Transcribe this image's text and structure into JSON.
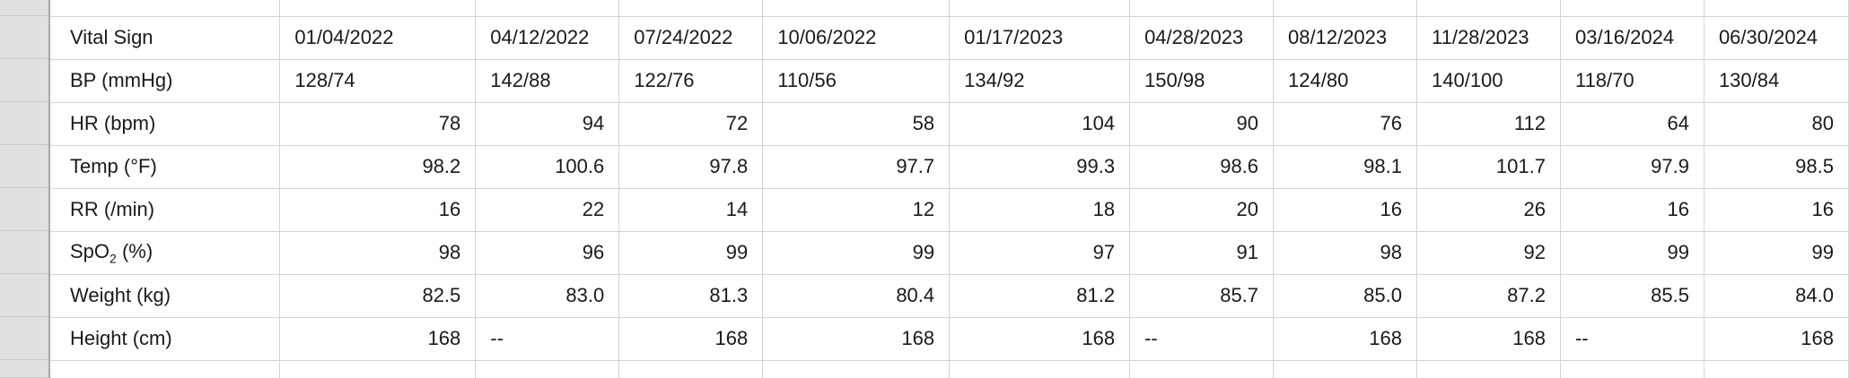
{
  "table": {
    "header": [
      "Vital Sign",
      "01/04/2022",
      "04/12/2022",
      "07/24/2022",
      "10/06/2022",
      "01/17/2023",
      "04/28/2023",
      "08/12/2023",
      "11/28/2023",
      "03/16/2024",
      "06/30/2024"
    ],
    "rows": [
      {
        "label": "BP (mmHg)",
        "align": "txt",
        "values": [
          "128/74",
          "142/88",
          "122/76",
          "110/56",
          "134/92",
          "150/98",
          "124/80",
          "140/100",
          "118/70",
          "130/84"
        ]
      },
      {
        "label": "HR (bpm)",
        "align": "num",
        "values": [
          "78",
          "94",
          "72",
          "58",
          "104",
          "90",
          "76",
          "112",
          "64",
          "80"
        ]
      },
      {
        "label": "Temp (°F)",
        "align": "num",
        "values": [
          "98.2",
          "100.6",
          "97.8",
          "97.7",
          "99.3",
          "98.6",
          "98.1",
          "101.7",
          "97.9",
          "98.5"
        ]
      },
      {
        "label": "RR (/min)",
        "align": "num",
        "values": [
          "16",
          "22",
          "14",
          "12",
          "18",
          "20",
          "16",
          "26",
          "16",
          "16"
        ]
      },
      {
        "label_main": "SpO",
        "label_sub": "2",
        "label_tail": " (%)",
        "align": "num",
        "values": [
          "98",
          "96",
          "99",
          "99",
          "97",
          "91",
          "98",
          "92",
          "99",
          "99"
        ]
      },
      {
        "label": "Weight (kg)",
        "align": "num",
        "values": [
          "82.5",
          "83.0",
          "81.3",
          "80.4",
          "81.2",
          "85.7",
          "85.0",
          "87.2",
          "85.5",
          "84.0"
        ]
      },
      {
        "label": "Height (cm)",
        "align": "num",
        "values": [
          "168",
          "--",
          "168",
          "168",
          "168",
          "--",
          "168",
          "168",
          "--",
          "168"
        ]
      }
    ]
  }
}
